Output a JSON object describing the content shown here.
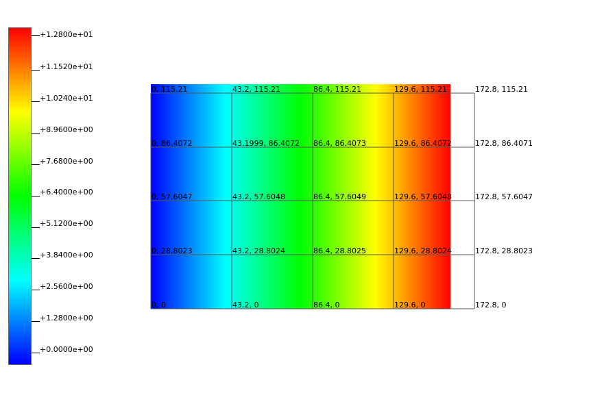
{
  "colors": {
    "gradient": [
      "#0000ff",
      "#00ffff",
      "#00ff00",
      "#ffff00",
      "#ff0000"
    ],
    "mesh_line": "#555555"
  },
  "colorbar": {
    "labels": [
      "+1.2800e+01",
      "+1.1520e+01",
      "+1.0240e+01",
      "+8.9600e+00",
      "+7.6800e+00",
      "+6.4000e+00",
      "+5.1200e+00",
      "+3.8400e+00",
      "+2.5600e+00",
      "+1.2800e+00",
      "+0.0000e+00"
    ]
  },
  "mesh": {
    "columns": [
      "0",
      "43.2",
      "86.4",
      "129.6",
      "172.8"
    ],
    "rows": [
      "115.21",
      "86.4072",
      "57.6047",
      "28.8023",
      "0"
    ],
    "node_labels": [
      [
        "0, 115.21",
        "43.2, 115.21",
        "86.4, 115.21",
        "129.6, 115.21",
        "172.8, 115.21"
      ],
      [
        "0, 86.4072",
        "43.1999, 86.4072",
        "86.4, 86.4073",
        "129.6, 86.4072",
        "172.8, 86.4071"
      ],
      [
        "0, 57.6047",
        "43.2, 57.6048",
        "86.4, 57.6049",
        "129.6, 57.6048",
        "172.8, 57.6047"
      ],
      [
        "0, 28.8023",
        "43.2, 28.8024",
        "86.4, 28.8025",
        "129.6, 28.8024",
        "172.8, 28.8023"
      ],
      [
        "0, 0",
        "43.2, 0",
        "86.4, 0",
        "129.6, 0",
        "172.8, 0"
      ]
    ]
  }
}
